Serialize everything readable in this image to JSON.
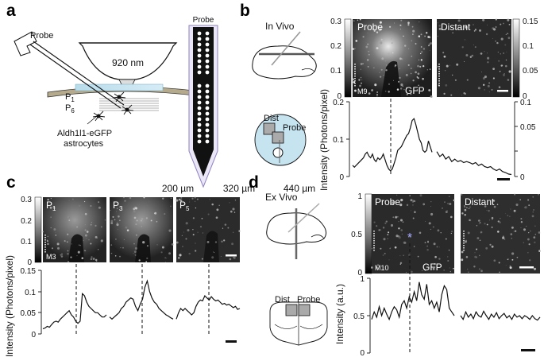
{
  "panels": {
    "a": {
      "letter": "a",
      "probe_label": "Probe",
      "wavelength": "920 nm",
      "p_top": "P",
      "p_top_sub": "1",
      "p_bot": "P",
      "p_bot_sub": "6",
      "cells_line1": "Aldh1l1-eGFP",
      "cells_line2": "astrocytes",
      "probe_detail_label": "Probe"
    },
    "b": {
      "letter": "b",
      "condition": "In Vivo",
      "img_left_label": "Probe",
      "img_left_tag": "M9",
      "img_left_stain": "GFP",
      "img_right_label": "Distant",
      "schematic_dist": "Dist",
      "schematic_probe": "Probe",
      "ylabel": "Intensity (Photons/pixel)",
      "left_colorbar_ticks": [
        "0.3",
        "0.2",
        "0.1",
        "0"
      ],
      "right_colorbar_ticks": [
        "0.15",
        "0.1",
        "0.05",
        "0"
      ],
      "trace_left_ticks": [
        "0.2",
        "0.1",
        "0"
      ],
      "trace_right_ticks": [
        "0.1",
        "0.05",
        "0"
      ]
    },
    "c": {
      "letter": "c",
      "depths": [
        "200 µm",
        "320 µm",
        "440 µm"
      ],
      "img_tags": [
        {
          "main": "P",
          "sub": "1"
        },
        {
          "main": "P",
          "sub": "3"
        },
        {
          "main": "P",
          "sub": "5"
        }
      ],
      "mouse": "M3",
      "ylabel": "Intensity (Photons/pixel)",
      "colorbar_ticks": [
        "0.3",
        "0.2",
        "0.1",
        "0"
      ],
      "trace_ticks": [
        "0.15",
        "0.1",
        "0.05",
        "0"
      ]
    },
    "d": {
      "letter": "d",
      "condition": "Ex Vivo",
      "img_left_label": "Probe",
      "img_left_tag": "M10",
      "img_left_stain": "GFP",
      "img_right_label": "Distant",
      "schematic_dist": "Dist",
      "schematic_probe": "Probe",
      "ylabel": "Intensity (a.u.)",
      "colorbar_ticks": [
        "1",
        "0.5",
        "0"
      ],
      "trace_ticks": [
        "1",
        "0.5",
        "0"
      ],
      "star": "*"
    }
  },
  "chart_data": [
    {
      "type": "line",
      "panel": "b",
      "ylabel": "Intensity (Photons/pixel)",
      "ylim_left": [
        0,
        0.2
      ],
      "ylim_right": [
        0,
        0.15
      ],
      "series": [
        {
          "values": [
            0.03,
            0.025,
            0.03,
            0.035,
            0.04,
            0.045,
            0.05,
            0.06,
            0.065,
            0.055,
            0.05,
            0.06,
            0.045,
            0.04,
            0.05,
            0.045,
            0.05,
            0.06,
            0.045,
            0.03,
            0.02,
            0.015,
            0.02,
            0.035,
            0.05,
            0.07,
            0.075,
            0.08,
            0.09,
            0.1,
            0.11,
            0.115,
            0.13,
            0.15,
            0.155,
            0.14,
            0.12,
            0.1,
            0.09,
            0.07,
            0.065,
            0.07,
            0.095,
            0.08,
            0.065
          ]
        },
        {
          "values": [
            0.05,
            0.04,
            0.045,
            0.035,
            0.04,
            0.03,
            0.035,
            0.03,
            0.032,
            0.028,
            0.03,
            0.028,
            0.025,
            0.028,
            0.022,
            0.025,
            0.02,
            0.018,
            0.02,
            0.015,
            0.012,
            0.015,
            0.01,
            0.008,
            0.005,
            0.004
          ]
        }
      ]
    },
    {
      "type": "line",
      "panel": "c",
      "ylabel": "Intensity (Photons/pixel)",
      "ylim": [
        0,
        0.15
      ],
      "series": [
        {
          "values": [
            0.012,
            0.014,
            0.018,
            0.016,
            0.022,
            0.028,
            0.03,
            0.028,
            0.035,
            0.04,
            0.045,
            0.05,
            0.055,
            0.045,
            0.04,
            0.03,
            0.025,
            0.03,
            0.095,
            0.09,
            0.075,
            0.065,
            0.06,
            0.055,
            0.05,
            0.05,
            0.045,
            0.04,
            0.04,
            0.045
          ]
        },
        {
          "values": [
            0.04,
            0.035,
            0.04,
            0.045,
            0.05,
            0.06,
            0.065,
            0.075,
            0.08,
            0.085,
            0.082,
            0.065,
            0.055,
            0.07,
            0.082,
            0.11,
            0.125,
            0.1,
            0.085,
            0.075,
            0.07,
            0.06,
            0.055,
            0.05,
            0.045,
            0.042,
            0.038,
            0.035
          ]
        },
        {
          "values": [
            0.035,
            0.05,
            0.06,
            0.055,
            0.06,
            0.055,
            0.05,
            0.045,
            0.05,
            0.065,
            0.075,
            0.08,
            0.078,
            0.09,
            0.085,
            0.08,
            0.088,
            0.082,
            0.078,
            0.08,
            0.075,
            0.07,
            0.072,
            0.068,
            0.07,
            0.066,
            0.062,
            0.065,
            0.058,
            0.06
          ]
        }
      ]
    },
    {
      "type": "line",
      "panel": "d",
      "ylabel": "Intensity (a.u.)",
      "ylim": [
        0,
        1
      ],
      "series": [
        {
          "values": [
            0.45,
            0.55,
            0.48,
            0.62,
            0.5,
            0.6,
            0.52,
            0.45,
            0.55,
            0.62,
            0.58,
            0.48,
            0.65,
            0.7,
            0.6,
            0.75,
            0.68,
            0.82,
            0.7,
            0.95,
            0.78,
            0.72,
            0.92,
            0.65,
            0.7,
            0.6,
            0.68,
            0.55,
            0.78,
            0.9,
            0.85,
            0.6,
            0.55,
            0.5
          ]
        },
        {
          "values": [
            0.5,
            0.45,
            0.55,
            0.48,
            0.52,
            0.46,
            0.55,
            0.5,
            0.48,
            0.56,
            0.5,
            0.45,
            0.52,
            0.48,
            0.54,
            0.46,
            0.5,
            0.53,
            0.47,
            0.5,
            0.45,
            0.52,
            0.48,
            0.5,
            0.46,
            0.5,
            0.48,
            0.45,
            0.5,
            0.46,
            0.44,
            0.48
          ]
        }
      ]
    }
  ]
}
